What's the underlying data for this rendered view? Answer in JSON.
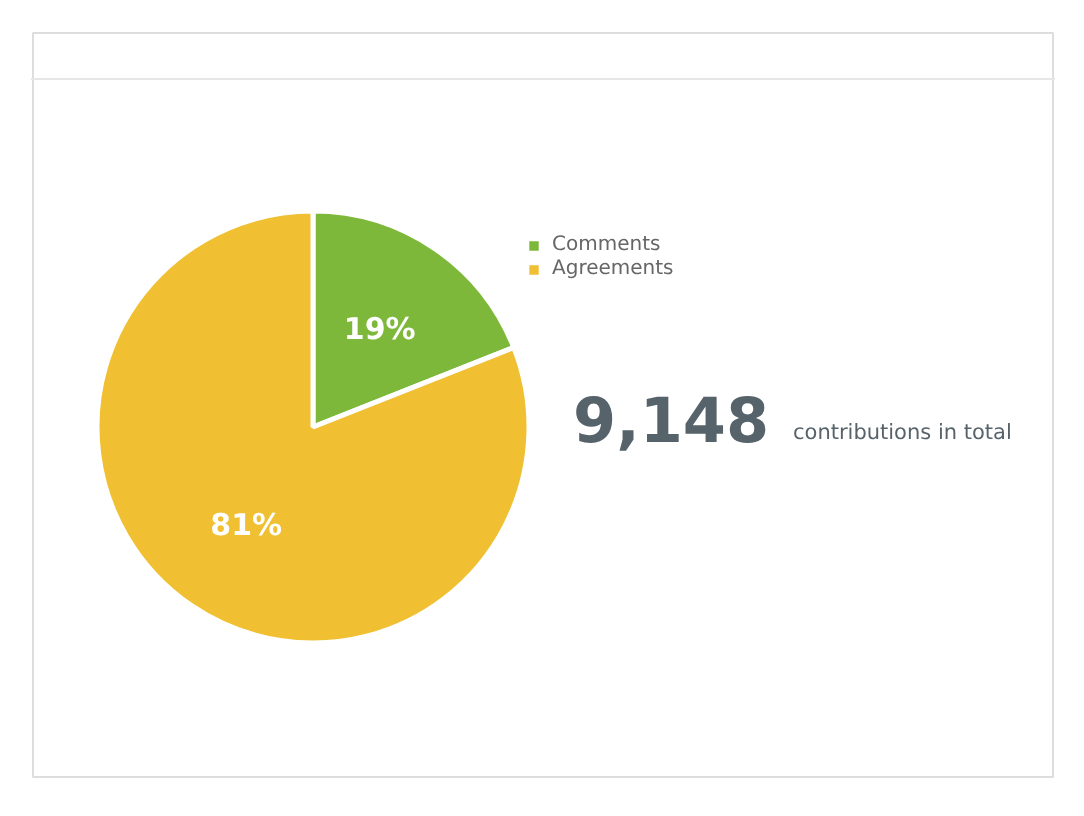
{
  "chart_data": {
    "type": "pie",
    "categories": [
      "Comments",
      "Agreements"
    ],
    "values": [
      19,
      81
    ],
    "colors": [
      "#7db83a",
      "#f0c032"
    ],
    "value_labels": [
      "19%",
      "81%"
    ],
    "legend": "right",
    "annotations": [
      "9,148",
      "contributions in total"
    ]
  }
}
